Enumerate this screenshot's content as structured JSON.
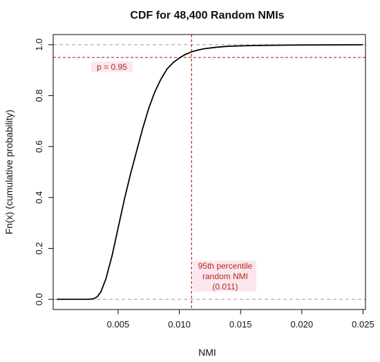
{
  "chart_data": {
    "type": "line",
    "title": "CDF for 48,400 Random NMIs",
    "xlabel": "NMI",
    "ylabel": "Fn(x) (cumulative probability)",
    "xlim": [
      0.0,
      0.025
    ],
    "ylim": [
      0.0,
      1.0
    ],
    "x_ticks": [
      0.005,
      0.01,
      0.015,
      0.02,
      0.025
    ],
    "x_tick_labels": [
      "0.005",
      "0.010",
      "0.015",
      "0.020",
      "0.025"
    ],
    "y_ticks": [
      0.0,
      0.2,
      0.4,
      0.6,
      0.8,
      1.0
    ],
    "y_tick_labels": [
      "0.0",
      "0.2",
      "0.4",
      "0.6",
      "0.8",
      "1.0"
    ],
    "grid": false,
    "series": [
      {
        "color": "#000000",
        "x": [
          0.0,
          0.0025,
          0.003,
          0.0033,
          0.0036,
          0.004,
          0.0045,
          0.005,
          0.0055,
          0.006,
          0.0065,
          0.007,
          0.0075,
          0.008,
          0.0085,
          0.009,
          0.0095,
          0.01,
          0.0105,
          0.011,
          0.0115,
          0.012,
          0.013,
          0.014,
          0.016,
          0.02,
          0.025
        ],
        "y": [
          0.0,
          0.0,
          0.002,
          0.01,
          0.03,
          0.08,
          0.17,
          0.28,
          0.39,
          0.49,
          0.58,
          0.67,
          0.75,
          0.815,
          0.865,
          0.905,
          0.93,
          0.948,
          0.962,
          0.972,
          0.979,
          0.984,
          0.99,
          0.994,
          0.997,
          0.999,
          1.0
        ]
      }
    ],
    "reference_lines": {
      "horizontal_gray": [
        0.0,
        1.0
      ],
      "horizontal_red": 0.95,
      "vertical_red": 0.011,
      "gray_color": "#9a9a9a",
      "red_color": "#b22a1a"
    },
    "annotations": {
      "p_label": "p = 0.95",
      "percentile_lines": [
        "95th percentile",
        "random NMI",
        "(0.011)"
      ]
    }
  }
}
